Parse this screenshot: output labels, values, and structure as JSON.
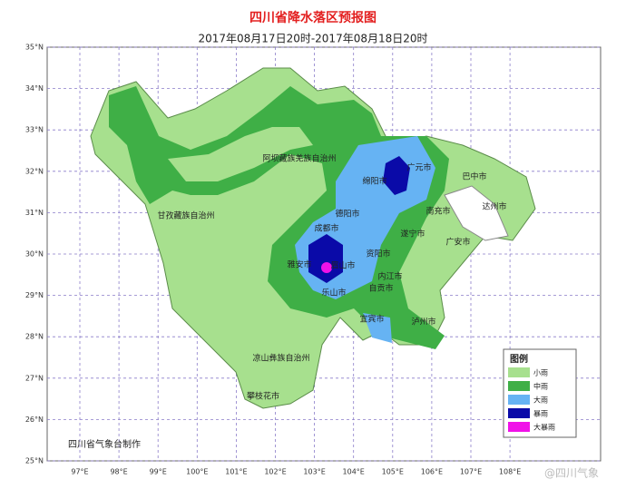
{
  "header": {
    "title": "四川省降水落区预报图",
    "subtitle": "2017年08月17日20时-2017年08月18日20时"
  },
  "latitude_labels": [
    "35°N",
    "34°N",
    "33°N",
    "32°N",
    "31°N",
    "30°N",
    "29°N",
    "28°N",
    "27°N",
    "26°N",
    "25°N"
  ],
  "longitude_labels": [
    "97°E",
    "98°E",
    "99°E",
    "100°E",
    "101°E",
    "102°E",
    "103°E",
    "104°E",
    "105°E",
    "106°E",
    "107°E",
    "108°E"
  ],
  "places": [
    "阿坝藏族羌族自治州",
    "甘孜藏族自治州",
    "凉山彝族自治州",
    "攀枝花市",
    "广元市",
    "巴中市",
    "绵阳市",
    "南充市",
    "达州市",
    "德阳市",
    "成都市",
    "遂宁市",
    "广安市",
    "资阳市",
    "雅安市",
    "眉山市",
    "内江市",
    "乐山市",
    "自贡市",
    "宜宾市",
    "泸州市"
  ],
  "legend": {
    "title": "图例",
    "items": [
      "小雨",
      "中雨",
      "大雨",
      "暴雨",
      "大暴雨"
    ]
  },
  "credit": "四川省气象台制作",
  "watermark": "@四川气象"
}
